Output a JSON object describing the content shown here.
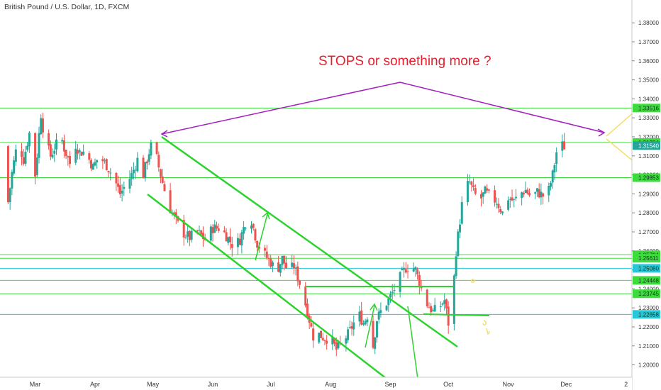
{
  "header": {
    "symbol_title": "British Pound / U.S. Dollar, 1D, FXCM"
  },
  "annotation": {
    "text": "STOPS or something more ?",
    "color": "#e3202e"
  },
  "chart_data": {
    "type": "candlestick",
    "title": "British Pound / U.S. Dollar, 1D, FXCM",
    "ylim": [
      1.1935,
      1.392
    ],
    "y_ticks": [
      1.2,
      1.21,
      1.22,
      1.23,
      1.24,
      1.25,
      1.26,
      1.27,
      1.28,
      1.29,
      1.3,
      1.31,
      1.32,
      1.33,
      1.34,
      1.35,
      1.36,
      1.37,
      1.38
    ],
    "y_tick_labels": [
      "1.20000",
      "1.21000",
      "1.22000",
      "1.23000",
      "1.24000",
      "1.25000",
      "1.26000",
      "1.27000",
      "1.28000",
      "1.29000",
      "1.30000",
      "1.31000",
      "1.32000",
      "1.33000",
      "1.34000",
      "1.35000",
      "1.36000",
      "1.37000",
      "1.38000"
    ],
    "x_labels": [
      "Mar",
      "Apr",
      "May",
      "Jun",
      "Jul",
      "Aug",
      "Sep",
      "Oct",
      "Nov",
      "Dec",
      "2"
    ],
    "x_label_days": [
      28,
      59,
      89,
      120,
      150,
      181,
      212,
      242,
      273,
      303,
      334
    ],
    "x_range_days": [
      12,
      322
    ],
    "price_levels": [
      {
        "label": "1.33516",
        "value": 1.33516,
        "kind": "green"
      },
      {
        "label": "1.31704",
        "value": 1.31704,
        "kind": "green"
      },
      {
        "label": "1.31540",
        "value": 1.3154,
        "kind": "current"
      },
      {
        "label": "1.29853",
        "value": 1.29853,
        "kind": "green"
      },
      {
        "label": "1.25794",
        "value": 1.25794,
        "kind": "green"
      },
      {
        "label": "1.25611",
        "value": 1.25611,
        "kind": "green"
      },
      {
        "label": "1.25080",
        "value": 1.2508,
        "kind": "cyan"
      },
      {
        "label": "1.24448",
        "value": 1.24448,
        "kind": "green"
      },
      {
        "label": "1.23745",
        "value": 1.23745,
        "kind": "green"
      },
      {
        "label": "1.22658",
        "value": 1.22658,
        "kind": "cyan"
      }
    ],
    "waypoints": [
      [
        13,
        1.278
      ],
      [
        16,
        1.301
      ],
      [
        19,
        1.318
      ],
      [
        22,
        1.308
      ],
      [
        25,
        1.322
      ],
      [
        28,
        1.3
      ],
      [
        31,
        1.332
      ],
      [
        33,
        1.318
      ],
      [
        36,
        1.31
      ],
      [
        39,
        1.316
      ],
      [
        41,
        1.322
      ],
      [
        43,
        1.314
      ],
      [
        46,
        1.306
      ],
      [
        48,
        1.318
      ],
      [
        51,
        1.312
      ],
      [
        54,
        1.312
      ],
      [
        58,
        1.304
      ],
      [
        61,
        1.31
      ],
      [
        65,
        1.305
      ],
      [
        69,
        1.298
      ],
      [
        72,
        1.29
      ],
      [
        75,
        1.295
      ],
      [
        78,
        1.3
      ],
      [
        81,
        1.308
      ],
      [
        84,
        1.3
      ],
      [
        87,
        1.312
      ],
      [
        89,
        1.318
      ],
      [
        92,
        1.304
      ],
      [
        95,
        1.292
      ],
      [
        98,
        1.282
      ],
      [
        101,
        1.276
      ],
      [
        104,
        1.27
      ],
      [
        108,
        1.267
      ],
      [
        112,
        1.27
      ],
      [
        116,
        1.266
      ],
      [
        120,
        1.272
      ],
      [
        124,
        1.272
      ],
      [
        127,
        1.268
      ],
      [
        131,
        1.262
      ],
      [
        134,
        1.266
      ],
      [
        137,
        1.275
      ],
      [
        140,
        1.276
      ],
      [
        143,
        1.264
      ],
      [
        146,
        1.259
      ],
      [
        150,
        1.254
      ],
      [
        153,
        1.249
      ],
      [
        156,
        1.256
      ],
      [
        159,
        1.249
      ],
      [
        162,
        1.252
      ],
      [
        166,
        1.24
      ],
      [
        169,
        1.228
      ],
      [
        172,
        1.215
      ],
      [
        175,
        1.216
      ],
      [
        178,
        1.214
      ],
      [
        181,
        1.214
      ],
      [
        184,
        1.208
      ],
      [
        187,
        1.212
      ],
      [
        190,
        1.216
      ],
      [
        193,
        1.222
      ],
      [
        196,
        1.226
      ],
      [
        198,
        1.222
      ],
      [
        200,
        1.226
      ],
      [
        203,
        1.21
      ],
      [
        205,
        1.224
      ],
      [
        208,
        1.23
      ],
      [
        211,
        1.234
      ],
      [
        214,
        1.24
      ],
      [
        217,
        1.246
      ],
      [
        220,
        1.251
      ],
      [
        223,
        1.252
      ],
      [
        225,
        1.25
      ],
      [
        228,
        1.24
      ],
      [
        231,
        1.232
      ],
      [
        234,
        1.228
      ],
      [
        237,
        1.23
      ],
      [
        240,
        1.234
      ],
      [
        242,
        1.222
      ],
      [
        244,
        1.232
      ],
      [
        246,
        1.26
      ],
      [
        248,
        1.276
      ],
      [
        250,
        1.292
      ],
      [
        253,
        1.296
      ],
      [
        255,
        1.291
      ],
      [
        258,
        1.286
      ],
      [
        261,
        1.291
      ],
      [
        264,
        1.288
      ],
      [
        267,
        1.286
      ],
      [
        270,
        1.28
      ],
      [
        273,
        1.288
      ],
      [
        276,
        1.286
      ],
      [
        279,
        1.29
      ],
      [
        282,
        1.292
      ],
      [
        285,
        1.288
      ],
      [
        288,
        1.291
      ],
      [
        291,
        1.289
      ],
      [
        294,
        1.292
      ],
      [
        296,
        1.3
      ],
      [
        298,
        1.312
      ],
      [
        300,
        1.316
      ],
      [
        302,
        1.315
      ]
    ]
  }
}
